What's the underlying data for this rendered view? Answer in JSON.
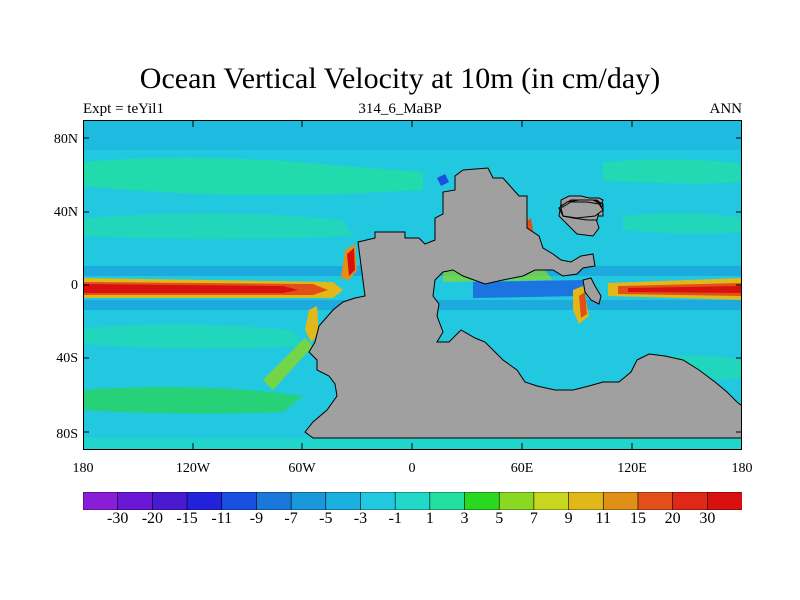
{
  "title": "Ocean Vertical Velocity at 10m (in cm/day)",
  "subtitle_left": "Expt = teYil1",
  "subtitle_center": "314_6_MaBP",
  "subtitle_right": "ANN",
  "lat_labels": [
    "80N",
    "40N",
    "0",
    "40S",
    "80S"
  ],
  "lon_labels": [
    "180",
    "120W",
    "60W",
    "0",
    "60E",
    "120E",
    "180"
  ],
  "colorbar": {
    "labels": [
      "-30",
      "-20",
      "-15",
      "-11",
      "-9",
      "-7",
      "-5",
      "-3",
      "-1",
      "1",
      "3",
      "5",
      "7",
      "9",
      "11",
      "15",
      "20",
      "30"
    ],
    "colors": [
      "#8a1ed8",
      "#6a18d6",
      "#4a1ad0",
      "#2222dc",
      "#1a50e0",
      "#1a78dc",
      "#1a98dc",
      "#1ab0e0",
      "#22c8e0",
      "#22d8c8",
      "#22e0a0",
      "#2ad820",
      "#8ad822",
      "#c8d81e",
      "#e0b81a",
      "#e09018",
      "#e05018",
      "#e02818",
      "#d81010"
    ],
    "land_color": "#a0a0a0",
    "ocean_base": "#22c8e0"
  }
}
